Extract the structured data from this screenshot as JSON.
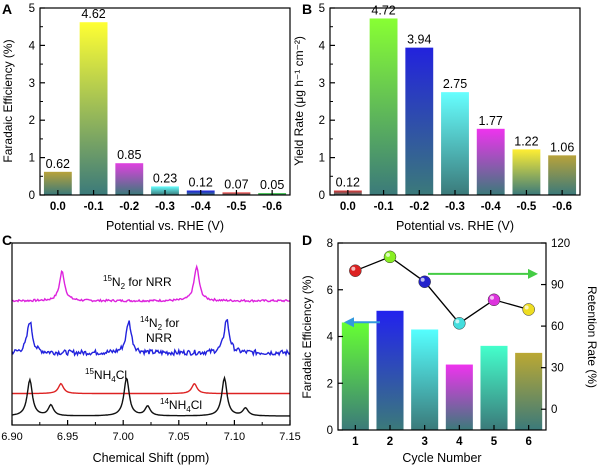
{
  "colors": {
    "axis": "#000000",
    "teal": "#3b7a7a",
    "bar_tops_A": [
      "#b8a23a",
      "#ffff33",
      "#e040e0",
      "#66ffff",
      "#1f1fe6",
      "#ff3333",
      "#33cc33"
    ],
    "bar_tops_B": [
      "#e03030",
      "#88ff33",
      "#2222dd",
      "#66ffff",
      "#ee33ee",
      "#ffee33",
      "#b8a23a"
    ],
    "nmr_15N2": "#dd22dd",
    "nmr_14N2": "#2222dd",
    "nmr_15NH4Cl": "#dd2222",
    "nmr_14NH4Cl": "#111111",
    "arrow_right": "#44cc44",
    "arrow_left": "#3399dd",
    "dot_colors": [
      "#dd2222",
      "#88ee22",
      "#2222cc",
      "#44dddd",
      "#dd33dd",
      "#eedd22"
    ]
  },
  "chart_data": [
    {
      "panel": "A",
      "type": "bar",
      "categories": [
        "0.0",
        "-0.1",
        "-0.2",
        "-0.3",
        "-0.4",
        "-0.5",
        "-0.6"
      ],
      "values": [
        0.62,
        4.62,
        0.85,
        0.23,
        0.12,
        0.07,
        0.05
      ],
      "value_labels": [
        "0.62",
        "4.62",
        "0.85",
        "0.23",
        "0.12",
        "0.07",
        "0.05"
      ],
      "xlabel": "Potential vs. RHE (V)",
      "ylabel": "Faradaic Efficiency (%)",
      "ylim": [
        0,
        5
      ],
      "yticks": [
        "0",
        "1",
        "2",
        "3",
        "4",
        "5"
      ]
    },
    {
      "panel": "B",
      "type": "bar",
      "categories": [
        "0.0",
        "-0.1",
        "-0.2",
        "-0.3",
        "-0.4",
        "-0.5",
        "-0.6"
      ],
      "values": [
        0.12,
        4.72,
        3.94,
        2.75,
        1.77,
        1.22,
        1.06
      ],
      "value_labels": [
        "0.12",
        "4.72",
        "3.94",
        "2.75",
        "1.77",
        "1.22",
        "1.06"
      ],
      "xlabel": "Potential vs. RHE (V)",
      "ylabel": "Yield Rate (μg h⁻¹ cm⁻²)",
      "ylim": [
        0,
        5
      ],
      "yticks": [
        "0",
        "1",
        "2",
        "3",
        "4",
        "5"
      ]
    },
    {
      "panel": "C",
      "type": "line",
      "xlabel": "Chemical Shift (ppm)",
      "xlim": [
        6.9,
        7.15
      ],
      "xticks": [
        "6.90",
        "6.95",
        "7.00",
        "7.05",
        "7.10",
        "7.15"
      ],
      "series": [
        {
          "name": "15N2 for NRR",
          "label_sup": "15",
          "label_main": "N",
          "label_sub": "2",
          "label_tail": " for NRR",
          "baseline": 0.1,
          "peaks": [
            [
              6.945,
              0.7
            ],
            [
              7.066,
              0.8
            ]
          ],
          "noise": 0.05
        },
        {
          "name": "14N2 for NRR",
          "label_sup": "14",
          "label_main": "N",
          "label_sub": "2",
          "label_tail": " for",
          "label_line2": "NRR",
          "baseline": 0.1,
          "peaks": [
            [
              6.916,
              0.75
            ],
            [
              7.005,
              0.75
            ],
            [
              7.093,
              0.8
            ]
          ],
          "noise": 0.12
        },
        {
          "name": "15NH4Cl",
          "label_sup": "15",
          "label_main": "NH",
          "label_sub": "4",
          "label_tail": "Cl",
          "baseline": 0.08,
          "peaks": [
            [
              6.944,
              0.55
            ],
            [
              7.064,
              0.55
            ]
          ],
          "noise": 0.0
        },
        {
          "name": "14NH4Cl",
          "label_sup": "14",
          "label_main": "NH",
          "label_sub": "4",
          "label_tail": "Cl",
          "baseline": 0.05,
          "peaks": [
            [
              6.916,
              0.95
            ],
            [
              6.935,
              0.28
            ],
            [
              7.003,
              1.0
            ],
            [
              7.022,
              0.25
            ],
            [
              7.091,
              1.0
            ],
            [
              7.11,
              0.2
            ]
          ],
          "noise": 0.0
        }
      ]
    },
    {
      "panel": "D",
      "type": "bar",
      "categories": [
        "1",
        "2",
        "3",
        "4",
        "5",
        "6"
      ],
      "values": [
        4.6,
        5.1,
        4.3,
        2.8,
        3.6,
        3.3
      ],
      "xlabel": "Cycle Number",
      "ylabel": "Faradaic Efficiency (%)",
      "ylim": [
        0,
        8
      ],
      "yticks": [
        "0",
        "2",
        "4",
        "6",
        "8"
      ],
      "y2label": "Retention Rate (%)",
      "y2lim": [
        -15,
        120
      ],
      "y2ticks": [
        "0",
        "30",
        "60",
        "90",
        "120"
      ],
      "retention": [
        100,
        110,
        92,
        62,
        79,
        72
      ]
    }
  ],
  "panels": {
    "A": "A",
    "B": "B",
    "C": "C",
    "D": "D"
  }
}
